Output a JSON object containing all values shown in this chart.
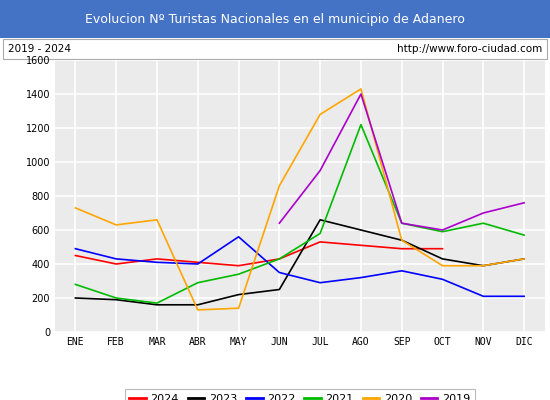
{
  "title": "Evolucion Nº Turistas Nacionales en el municipio de Adanero",
  "subtitle_left": "2019 - 2024",
  "subtitle_right": "http://www.foro-ciudad.com",
  "months": [
    "ENE",
    "FEB",
    "MAR",
    "ABR",
    "MAY",
    "JUN",
    "JUL",
    "AGO",
    "SEP",
    "OCT",
    "NOV",
    "DIC"
  ],
  "ylim": [
    0,
    1600
  ],
  "yticks": [
    0,
    200,
    400,
    600,
    800,
    1000,
    1200,
    1400,
    1600
  ],
  "series": {
    "2024": {
      "color": "#ff0000",
      "values": [
        450,
        400,
        430,
        410,
        390,
        430,
        530,
        510,
        490,
        490,
        null,
        null
      ]
    },
    "2023": {
      "color": "#000000",
      "values": [
        200,
        190,
        160,
        160,
        220,
        250,
        660,
        600,
        540,
        430,
        390,
        430
      ]
    },
    "2022": {
      "color": "#0000ff",
      "values": [
        490,
        430,
        410,
        400,
        560,
        350,
        290,
        320,
        360,
        310,
        210,
        210
      ]
    },
    "2021": {
      "color": "#00bb00",
      "values": [
        280,
        200,
        170,
        290,
        340,
        430,
        580,
        1220,
        640,
        590,
        640,
        570
      ]
    },
    "2020": {
      "color": "#ffa500",
      "values": [
        730,
        630,
        660,
        130,
        140,
        860,
        1280,
        1430,
        540,
        390,
        390,
        430
      ]
    },
    "2019": {
      "color": "#aa00cc",
      "values": [
        null,
        null,
        null,
        null,
        null,
        640,
        950,
        1400,
        640,
        600,
        700,
        760
      ]
    }
  },
  "title_bg_color": "#4472c4",
  "title_fg_color": "#ffffff",
  "plot_bg_color": "#ebebeb",
  "grid_color": "#ffffff",
  "border_color": "#aaaaaa",
  "legend_order": [
    "2024",
    "2023",
    "2022",
    "2021",
    "2020",
    "2019"
  ],
  "title_fontsize": 9,
  "subtitle_fontsize": 7.5,
  "axis_fontsize": 7,
  "legend_fontsize": 8
}
